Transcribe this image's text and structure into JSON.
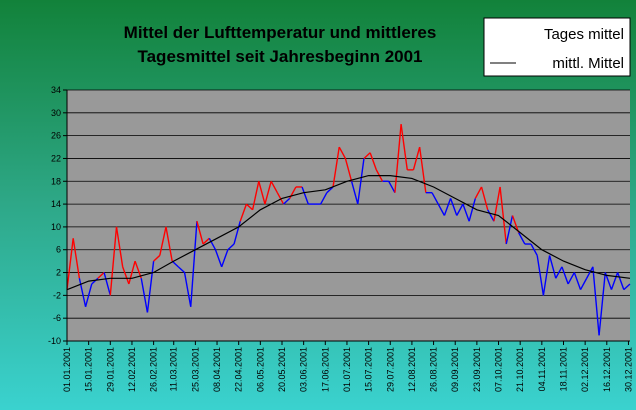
{
  "chart_data": {
    "type": "line",
    "title": [
      "Mittel der Lufttemperatur und mittleres",
      "Tagesmittel seit Jahresbeginn 2001"
    ],
    "xlabel": "",
    "ylabel": "",
    "ylim": [
      -10,
      34
    ],
    "yticks": [
      34,
      30,
      26,
      22,
      18,
      14,
      10,
      6,
      2,
      -2,
      -6,
      -10
    ],
    "xticks": [
      "01.01.2001",
      "15.01.2001",
      "29.01.2001",
      "12.02.2001",
      "26.02.2001",
      "11.03.2001",
      "25.03.2001",
      "08.04.2001",
      "22.04.2001",
      "06.05.2001",
      "20.05.2001",
      "03.06.2001",
      "17.06.2001",
      "01.07.2001",
      "15.07.2001",
      "29.07.2001",
      "12.08.2001",
      "26.08.2001",
      "09.09.2001",
      "23.09.2001",
      "07.10.2001",
      "21.10.2001",
      "04.11.2001",
      "18.11.2001",
      "02.12.2001",
      "16.12.2001",
      "30.12.2001"
    ],
    "xtick_days": [
      1,
      15,
      29,
      43,
      57,
      70,
      84,
      98,
      112,
      126,
      140,
      154,
      168,
      182,
      196,
      210,
      224,
      238,
      252,
      266,
      280,
      294,
      308,
      322,
      336,
      350,
      364
    ],
    "grid": true,
    "legend": {
      "position": "top-right",
      "entries": [
        "Tages mittel",
        "mittl. Mittel"
      ]
    },
    "colors": {
      "above": "#ff0000",
      "below": "#0000ff",
      "mean": "#000000",
      "plot_bg": "#999999"
    },
    "series": [
      {
        "name": "Tages mittel",
        "x": [
          1,
          5,
          9,
          13,
          17,
          21,
          25,
          29,
          33,
          37,
          41,
          45,
          49,
          53,
          57,
          61,
          65,
          69,
          73,
          77,
          81,
          85,
          89,
          93,
          97,
          101,
          105,
          109,
          113,
          117,
          121,
          125,
          129,
          133,
          137,
          141,
          145,
          149,
          153,
          157,
          161,
          165,
          169,
          173,
          177,
          181,
          185,
          189,
          193,
          197,
          201,
          205,
          209,
          213,
          217,
          221,
          225,
          229,
          233,
          237,
          241,
          245,
          249,
          253,
          257,
          261,
          265,
          269,
          273,
          277,
          281,
          285,
          289,
          293,
          297,
          301,
          305,
          309,
          313,
          317,
          321,
          325,
          329,
          333,
          337,
          341,
          345,
          349,
          353,
          357,
          361,
          365
        ],
        "values": [
          -1,
          8,
          1,
          -4,
          0,
          1,
          2,
          -2,
          10,
          3,
          0,
          4,
          1,
          -5,
          4,
          5,
          10,
          4,
          3,
          2,
          -4,
          11,
          7,
          8,
          6,
          3,
          6,
          7,
          11,
          14,
          13,
          18,
          14,
          18,
          16,
          14,
          15,
          17,
          17,
          14,
          14,
          14,
          16,
          17,
          24,
          22,
          18,
          14,
          22,
          23,
          20,
          18,
          18,
          16,
          28,
          20,
          20,
          24,
          16,
          16,
          14,
          12,
          15,
          12,
          14,
          11,
          15,
          17,
          13,
          11,
          17,
          7,
          12,
          9,
          7,
          7,
          5,
          -2,
          5,
          1,
          3,
          0,
          2,
          -1,
          1,
          3,
          -9,
          2,
          -1,
          2,
          -1,
          0
        ]
      },
      {
        "name": "mittl. Mittel",
        "x": [
          1,
          15,
          29,
          43,
          57,
          70,
          84,
          98,
          112,
          126,
          140,
          154,
          168,
          182,
          196,
          210,
          224,
          238,
          252,
          266,
          280,
          294,
          308,
          322,
          336,
          350,
          365
        ],
        "values": [
          -1,
          0.5,
          1,
          1,
          2,
          4,
          6,
          8,
          10,
          13,
          15,
          16,
          16.5,
          18,
          19,
          19,
          18.5,
          17,
          15,
          13,
          12,
          9,
          6,
          4,
          2.5,
          1.5,
          1
        ]
      }
    ]
  }
}
